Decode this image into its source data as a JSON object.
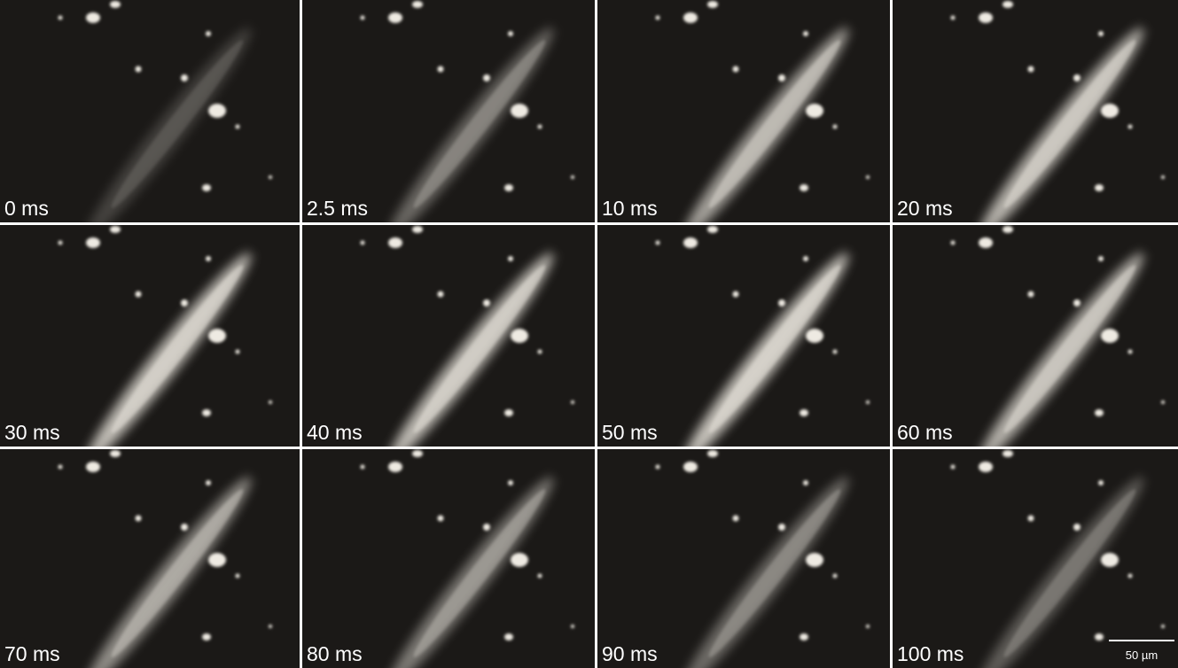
{
  "panels": [
    {
      "label": "0 ms"
    },
    {
      "label": "2.5 ms"
    },
    {
      "label": "10 ms"
    },
    {
      "label": "20 ms"
    },
    {
      "label": "30 ms"
    },
    {
      "label": "40 ms"
    },
    {
      "label": "50 ms"
    },
    {
      "label": "60 ms"
    },
    {
      "label": "70 ms"
    },
    {
      "label": "80 ms"
    },
    {
      "label": "90 ms"
    },
    {
      "label": "100 ms"
    }
  ],
  "scale_bar": {
    "label": "50 µm"
  }
}
